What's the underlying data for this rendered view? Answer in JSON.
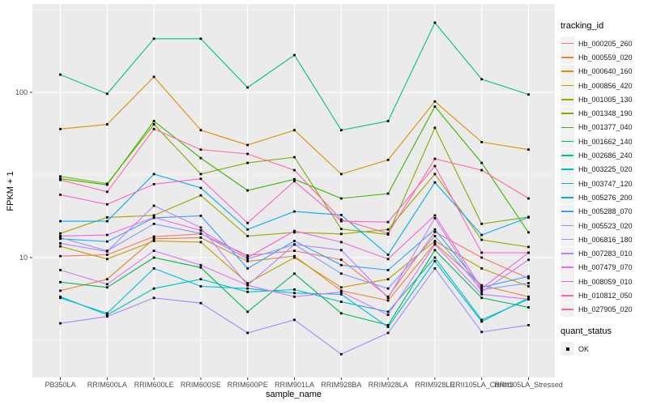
{
  "chart_data": {
    "type": "line",
    "title": "",
    "xlabel": "sample_name",
    "ylabel": "FPKM + 1",
    "scale": "log10",
    "grid": true,
    "legend_position": "right",
    "categories": [
      "PB350LA",
      "RRIM600LA",
      "RRIM600LE",
      "RRIM600SE",
      "RRIM600PE",
      "RRIM901LA",
      "RRIM928BA",
      "RRIM928LA",
      "RRIM928LE",
      "RRII105LA_Control",
      "RRII105LA_Stressed"
    ],
    "y_major_ticks": [
      10,
      100
    ],
    "y_minor_gridlines": [
      3.162,
      31.623,
      316.228
    ],
    "ylim": [
      1.9,
      340
    ],
    "legend_titles": {
      "series": "tracking_id",
      "points": "quant_status"
    },
    "point_legend": [
      {
        "label": "OK",
        "shape": "filled-square",
        "color": "#000000"
      }
    ],
    "style": {
      "panel_bg": "#EBEBEB",
      "grid_color": "#FFFFFF",
      "tick_label_color": "#4D4D4D",
      "point_color": "#000000"
    },
    "series": [
      {
        "name": "Hb_000205_260",
        "color": "#F8766D",
        "values": [
          10.2,
          10.4,
          13.4,
          13.9,
          10.3,
          11.0,
          9.7,
          5.8,
          14.3,
          10.0,
          7.5
        ]
      },
      {
        "name": "Hb_000559_020",
        "color": "#EA8331",
        "values": [
          6.3,
          7.4,
          13.0,
          13.2,
          9.5,
          10.2,
          6.3,
          5.5,
          12.2,
          6.8,
          5.8
        ]
      },
      {
        "name": "Hb_000640_160",
        "color": "#D89000",
        "values": [
          60,
          64,
          124,
          59,
          48,
          59,
          32,
          39,
          88,
          50,
          45
        ]
      },
      {
        "name": "Hb_000856_420",
        "color": "#C09B00",
        "values": [
          11.7,
          9.8,
          12.6,
          12.4,
          7.0,
          10.0,
          6.6,
          7.4,
          12.6,
          8.6,
          6.7
        ]
      },
      {
        "name": "Hb_001005_130",
        "color": "#A3A500",
        "values": [
          14.0,
          17.5,
          18.0,
          23.8,
          13.5,
          14.2,
          13.9,
          14.8,
          32.0,
          12.8,
          11.6
        ]
      },
      {
        "name": "Hb_001348_190",
        "color": "#7CAE00",
        "values": [
          31,
          28,
          64,
          32,
          37.4,
          40.5,
          14.9,
          13.8,
          61,
          16.0,
          17.6
        ]
      },
      {
        "name": "Hb_001377_040",
        "color": "#39B600",
        "values": [
          30,
          27.6,
          67,
          40,
          25.5,
          29.8,
          22.8,
          24.4,
          82,
          37.4,
          14.2
        ]
      },
      {
        "name": "Hb_001662_140",
        "color": "#00BB4E",
        "values": [
          7.1,
          6.6,
          10.0,
          8.7,
          4.7,
          8.0,
          4.6,
          3.9,
          11.1,
          5.7,
          5.0
        ]
      },
      {
        "name": "Hb_002686_240",
        "color": "#00C087",
        "values": [
          128,
          98,
          211,
          211,
          107,
          168,
          59,
          67,
          264,
          120,
          97
        ]
      },
      {
        "name": "Hb_003225_020",
        "color": "#00C0B8",
        "values": [
          5.8,
          4.5,
          6.5,
          7.4,
          6.2,
          6.4,
          5.4,
          4.7,
          10.0,
          4.2,
          5.6
        ]
      },
      {
        "name": "Hb_003747_120",
        "color": "#00BAE0",
        "values": [
          5.7,
          4.6,
          8.6,
          6.7,
          6.5,
          6.1,
          6.0,
          3.8,
          9.5,
          4.1,
          5.7
        ]
      },
      {
        "name": "Hb_005276_200",
        "color": "#00ACEF",
        "values": [
          16.6,
          16.6,
          32,
          26.4,
          14.8,
          19.0,
          18.1,
          10.4,
          28.5,
          13.7,
          17.5
        ]
      },
      {
        "name": "Hb_005288_070",
        "color": "#35A2FF",
        "values": [
          13.0,
          12.5,
          17.4,
          17.9,
          8.6,
          12.6,
          9.0,
          8.4,
          14.8,
          6.6,
          7.7
        ]
      },
      {
        "name": "Hb_005523_020",
        "color": "#7F9BFF",
        "values": [
          13.2,
          11.0,
          16.0,
          14.0,
          9.8,
          12.0,
          8.0,
          6.5,
          13.5,
          6.4,
          7.0
        ]
      },
      {
        "name": "Hb_006816_180",
        "color": "#9C8DFF",
        "values": [
          4.0,
          4.4,
          5.7,
          5.3,
          3.5,
          4.2,
          2.6,
          3.5,
          8.6,
          3.55,
          3.9
        ]
      },
      {
        "name": "Hb_007283_010",
        "color": "#C07EFF",
        "values": [
          12.2,
          10.9,
          20.6,
          15.2,
          6.8,
          12.0,
          11.1,
          5.7,
          17.3,
          6.2,
          9.7
        ]
      },
      {
        "name": "Hb_007479_070",
        "color": "#DD71F9",
        "values": [
          8.4,
          6.9,
          11.0,
          9.0,
          6.8,
          5.8,
          6.2,
          4.5,
          12.0,
          6.0,
          5.6
        ]
      },
      {
        "name": "Hb_008059_010",
        "color": "#F263DF",
        "values": [
          13.5,
          13.7,
          17.5,
          14.6,
          10.0,
          14.5,
          12.4,
          9.8,
          18.0,
          6.5,
          10.7
        ]
      },
      {
        "name": "Hb_010812_050",
        "color": "#FD61C7",
        "values": [
          24,
          21,
          27.8,
          30,
          16.2,
          29,
          16.6,
          16.4,
          35.8,
          10.7,
          10.7
        ]
      },
      {
        "name": "Hb_027905_020",
        "color": "#FF689C",
        "values": [
          29.5,
          25,
          60,
          45,
          42.4,
          33.8,
          17.0,
          14.0,
          39.6,
          33.8,
          22.8
        ]
      }
    ]
  }
}
